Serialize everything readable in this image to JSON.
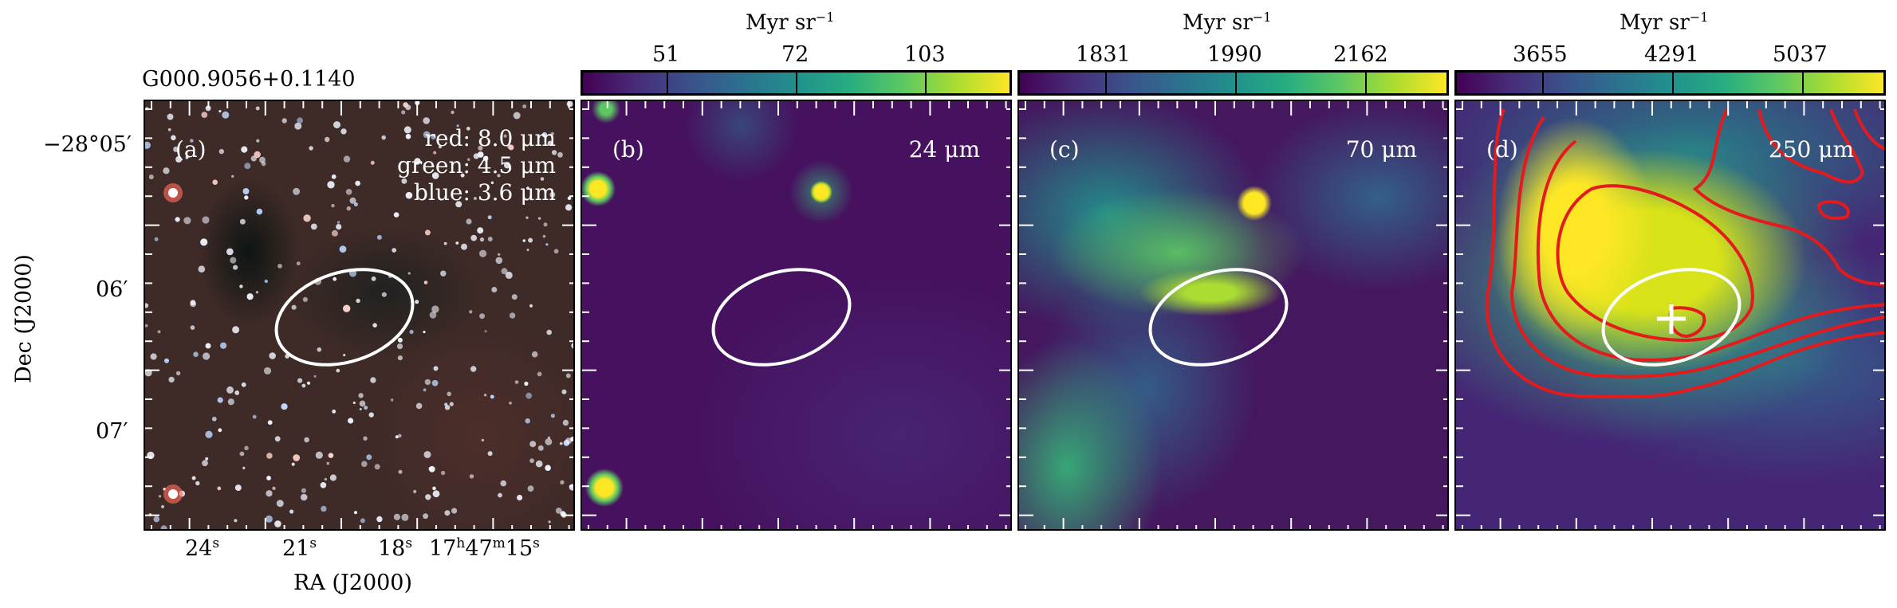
{
  "source_name": "G000.9056+0.1140",
  "axes": {
    "ylabel": "Dec (J2000)",
    "xlabel": "RA (J2000)",
    "dec_ticks": [
      "−28°05′",
      "06′",
      "07′"
    ],
    "ra_ticks": [
      {
        "main": "24",
        "sup": "s"
      },
      {
        "main": "21",
        "sup": "s"
      },
      {
        "main": "18",
        "sup": "s"
      },
      {
        "main": "17",
        "sup": "h",
        "main2": "47",
        "sup2": "m",
        "main3": "15",
        "sup3": "s"
      }
    ]
  },
  "panels": [
    {
      "letter": "(a)",
      "legend": [
        "red: 8.0 μm",
        "green: 4.5 μm",
        "blue: 3.6 μm"
      ]
    },
    {
      "letter": "(b)",
      "band": "24 μm",
      "colorbar": {
        "unit": "Myr sr",
        "exp": "−1",
        "ticks": [
          "51",
          "72",
          "103"
        ]
      }
    },
    {
      "letter": "(c)",
      "band": "70 μm",
      "colorbar": {
        "unit": "Myr sr",
        "exp": "−1",
        "ticks": [
          "1831",
          "1990",
          "2162"
        ]
      }
    },
    {
      "letter": "(d)",
      "band": "250 μm",
      "colorbar": {
        "unit": "Myr sr",
        "exp": "−1",
        "ticks": [
          "3655",
          "4291",
          "5037"
        ]
      }
    }
  ],
  "colors": {
    "viridis_dark": "#440154",
    "viridis_mid": "#21908d",
    "viridis_bright": "#fde725",
    "ellipse": "#ffffff",
    "contour": "#e41a1c"
  }
}
